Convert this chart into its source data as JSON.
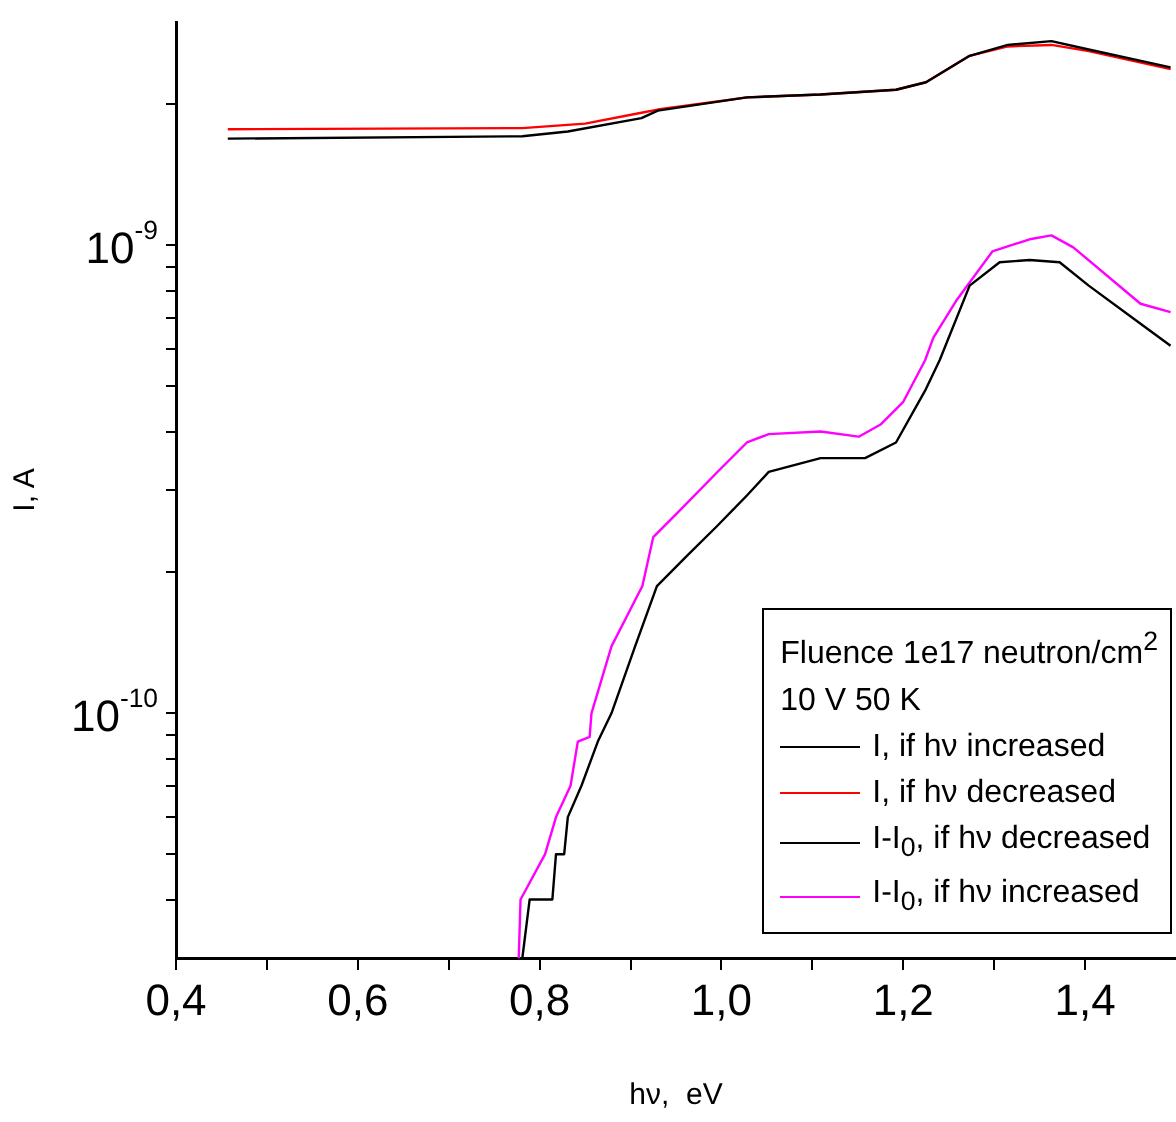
{
  "chart_data": {
    "type": "line",
    "xlabel": "hν,  eV",
    "ylabel": "I, A",
    "legend_title": "Fluence 1e17 neutron/cm$^{2}$\n10 V 50 K",
    "log": true,
    "grid": false,
    "legend": "bottom right",
    "marker": "none",
    "line_style": "solid",
    "xlim": [
      0.4,
      1.5
    ],
    "xticks": [
      {
        "value": 0.4,
        "label": "0,4"
      },
      {
        "value": 0.5,
        "label": null
      },
      {
        "value": 0.6,
        "label": "0,6"
      },
      {
        "value": 0.7,
        "label": null
      },
      {
        "value": 0.8,
        "label": "0,8"
      },
      {
        "value": 0.9,
        "label": null
      },
      {
        "value": 1.0,
        "label": "1,0"
      },
      {
        "value": 1.1,
        "label": null
      },
      {
        "value": 1.2,
        "label": "1,2"
      },
      {
        "value": 1.3,
        "label": null
      },
      {
        "value": 1.4,
        "label": "1,4"
      }
    ],
    "ylim": [
      3e-11,
      3e-09
    ],
    "yticks": [
      {
        "value": 4e-11,
        "label": null
      },
      {
        "value": 5e-11,
        "label": null
      },
      {
        "value": 6e-11,
        "label": null
      },
      {
        "value": 7e-11,
        "label": null
      },
      {
        "value": 8e-11,
        "label": null
      },
      {
        "value": 9e-11,
        "label": null
      },
      {
        "value": 1e-10,
        "label": "10$^{-10}$"
      },
      {
        "value": 2e-10,
        "label": null
      },
      {
        "value": 3e-10,
        "label": null
      },
      {
        "value": 4e-10,
        "label": null
      },
      {
        "value": 5e-10,
        "label": null
      },
      {
        "value": 6e-10,
        "label": null
      },
      {
        "value": 7e-10,
        "label": null
      },
      {
        "value": 8e-10,
        "label": null
      },
      {
        "value": 9e-10,
        "label": null
      },
      {
        "value": 1e-09,
        "label": "10$^{-9}$"
      },
      {
        "value": 2e-09,
        "label": null
      }
    ],
    "series": [
      {
        "name": "I, if hν increased",
        "color": "#000000",
        "x": [
          0.457,
          0.781,
          0.831,
          0.912,
          0.93,
          1.028,
          1.109,
          1.192,
          1.225,
          1.273,
          1.315,
          1.363,
          1.404,
          1.494
        ],
        "values": [
          1.69e-09,
          1.71e-09,
          1.75e-09,
          1.87e-09,
          1.94e-09,
          2.07e-09,
          2.1e-09,
          2.15e-09,
          2.23e-09,
          2.54e-09,
          2.68e-09,
          2.73e-09,
          2.62e-09,
          2.4e-09
        ]
      },
      {
        "name": "I, if hν decreased",
        "color": "#ff0000",
        "x": [
          0.457,
          0.781,
          0.85,
          0.912,
          0.93,
          1.028,
          1.109,
          1.192,
          1.225,
          1.273,
          1.315,
          1.363,
          1.404,
          1.494
        ],
        "values": [
          1.77e-09,
          1.78e-09,
          1.82e-09,
          1.92e-09,
          1.95e-09,
          2.07e-09,
          2.1e-09,
          2.15e-09,
          2.23e-09,
          2.54e-09,
          2.66e-09,
          2.68e-09,
          2.6e-09,
          2.38e-09
        ]
      },
      {
        "name": "I-I$_{0}$, if hν decreased",
        "color": "#000000",
        "x": [
          0.781,
          0.789,
          0.814,
          0.818,
          0.827,
          0.831,
          0.846,
          0.864,
          0.879,
          0.905,
          0.929,
          0.962,
          0.995,
          1.028,
          1.052,
          1.109,
          1.158,
          1.192,
          1.224,
          1.24,
          1.273,
          1.306,
          1.339,
          1.372,
          1.404,
          1.461,
          1.494
        ],
        "values": [
          3e-11,
          4e-11,
          4e-11,
          5e-11,
          5e-11,
          6e-11,
          7e-11,
          8.7e-11,
          1e-10,
          1.39e-10,
          1.87e-10,
          2.17e-10,
          2.51e-10,
          2.92e-10,
          3.28e-10,
          3.51e-10,
          3.51e-10,
          3.79e-10,
          4.89e-10,
          5.68e-10,
          8.2e-10,
          9.2e-10,
          9.3e-10,
          9.2e-10,
          8.2e-10,
          6.8e-10,
          6.1e-10
        ]
      },
      {
        "name": "I-I$_{0}$, if hν increased",
        "color": "#ff00ff",
        "x": [
          0.777,
          0.779,
          0.806,
          0.818,
          0.834,
          0.842,
          0.855,
          0.857,
          0.879,
          0.913,
          0.925,
          0.954,
          0.995,
          1.028,
          1.052,
          1.109,
          1.151,
          1.175,
          1.2,
          1.224,
          1.233,
          1.258,
          1.298,
          1.339,
          1.363,
          1.387,
          1.461,
          1.494
        ],
        "values": [
          3e-11,
          4e-11,
          5e-11,
          6e-11,
          7e-11,
          8.7e-11,
          8.9e-11,
          1e-10,
          1.39e-10,
          1.87e-10,
          2.38e-10,
          2.71e-10,
          3.27e-10,
          3.79e-10,
          3.95e-10,
          4e-10,
          3.9e-10,
          4.14e-10,
          4.63e-10,
          5.68e-10,
          6.34e-10,
          7.6e-10,
          9.7e-10,
          1.03e-09,
          1.05e-09,
          9.9e-10,
          7.5e-10,
          7.2e-10
        ]
      }
    ]
  }
}
